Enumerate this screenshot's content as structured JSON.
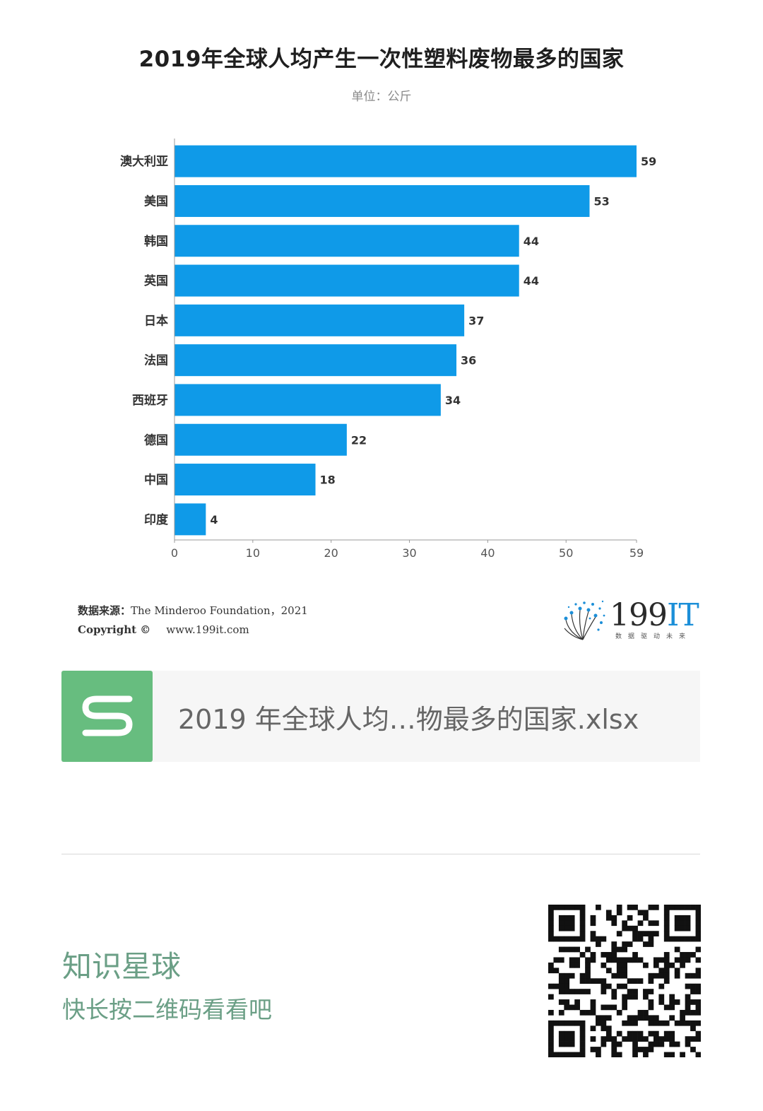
{
  "chart_data": {
    "type": "bar",
    "orientation": "horizontal",
    "title": "2019年全球人均产生一次性塑料废物最多的国家",
    "subtitle": "单位：公斤",
    "categories": [
      "澳大利亚",
      "美国",
      "韩国",
      "英国",
      "日本",
      "法国",
      "西班牙",
      "德国",
      "中国",
      "印度"
    ],
    "values": [
      59,
      53,
      44,
      44,
      37,
      36,
      34,
      22,
      18,
      4
    ],
    "xlim": [
      0,
      59
    ],
    "xticks": [
      0,
      10,
      20,
      30,
      40,
      50,
      59
    ],
    "bar_color": "#0f9ae8",
    "grid": false,
    "legend": "none",
    "data_labels": true
  },
  "source": {
    "label": "数据来源：",
    "text": "The Minderoo Foundation，2021",
    "copyright_label": "Copyright ©",
    "website": "www.199it.com"
  },
  "logo": {
    "number": "199",
    "letters": "IT",
    "slogan": "数据驱动未来"
  },
  "file_card": {
    "icon": "spreadsheet-s-icon",
    "filename": "2019 年全球人均…物最多的国家.xlsx",
    "icon_color": "#67bd7f"
  },
  "footer": {
    "title": "知识星球",
    "subtitle": "快长按二维码看看吧",
    "qr_icon": "qr-code-icon"
  },
  "colors": {
    "bar": "#0f9ae8",
    "footer_text": "#6b9f86",
    "file_icon": "#67bd7f"
  }
}
